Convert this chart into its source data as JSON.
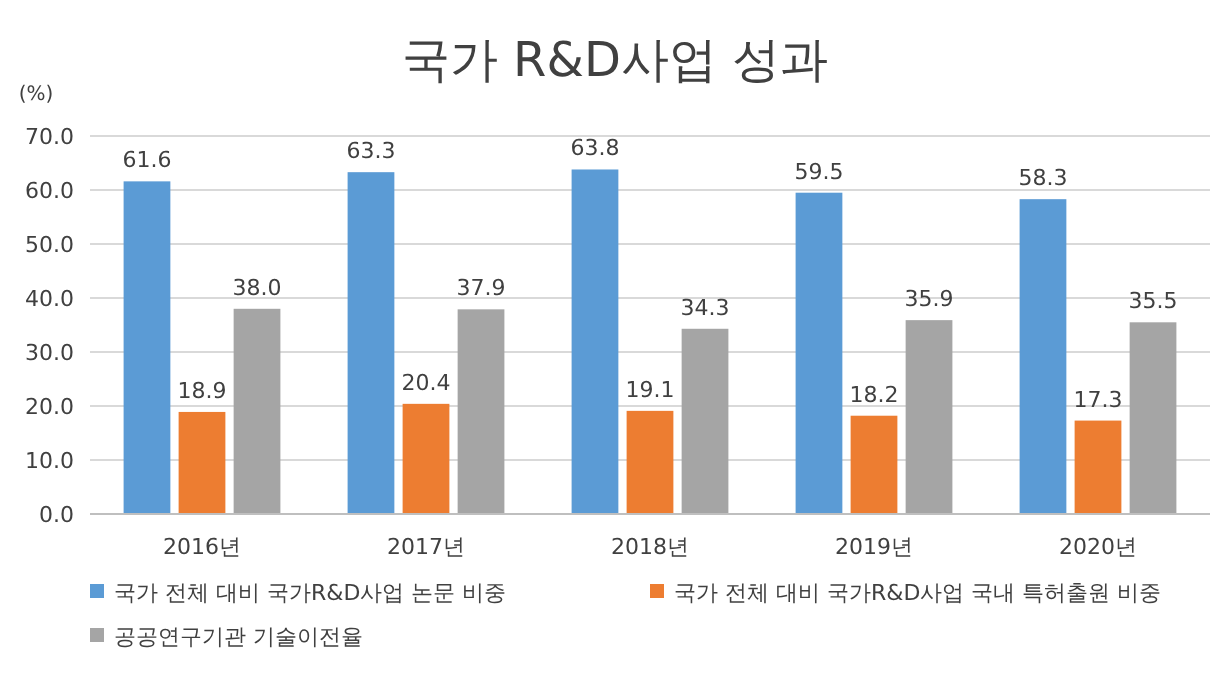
{
  "chart_data": {
    "type": "bar",
    "title": "국가 R&D사업 성과",
    "ylabel": "(%)",
    "categories": [
      "2016년",
      "2017년",
      "2018년",
      "2019년",
      "2020년"
    ],
    "series": [
      {
        "name": "국가 전체 대비 국가R&D사업 논문 비중",
        "color": "#5b9bd5",
        "values": [
          61.6,
          63.3,
          63.8,
          59.5,
          58.3
        ],
        "value_labels": [
          "61.6",
          "63.3",
          "63.8",
          "59.5",
          "58.3"
        ]
      },
      {
        "name": "국가 전체 대비 국가R&D사업 국내 특허출원 비중",
        "color": "#ed7d31",
        "values": [
          18.9,
          20.4,
          19.1,
          18.2,
          17.3
        ],
        "value_labels": [
          "18.9",
          "20.4",
          "19.1",
          "18.2",
          "17.3"
        ]
      },
      {
        "name": "공공연구기관 기술이전율",
        "color": "#a5a5a5",
        "values": [
          38.0,
          37.9,
          34.3,
          35.9,
          35.5
        ],
        "value_labels": [
          "38.0",
          "37.9",
          "34.3",
          "35.9",
          "35.5"
        ]
      }
    ],
    "ylim": [
      0,
      70
    ],
    "yticks": [
      {
        "value": 0,
        "label": "0.0"
      },
      {
        "value": 10,
        "label": "10.0"
      },
      {
        "value": 20,
        "label": "20.0"
      },
      {
        "value": 30,
        "label": "30.0"
      },
      {
        "value": 40,
        "label": "40.0"
      },
      {
        "value": 50,
        "label": "50.0"
      },
      {
        "value": 60,
        "label": "60.0"
      },
      {
        "value": 70,
        "label": "70.0"
      }
    ],
    "grid": "y",
    "legend": "bottom"
  }
}
